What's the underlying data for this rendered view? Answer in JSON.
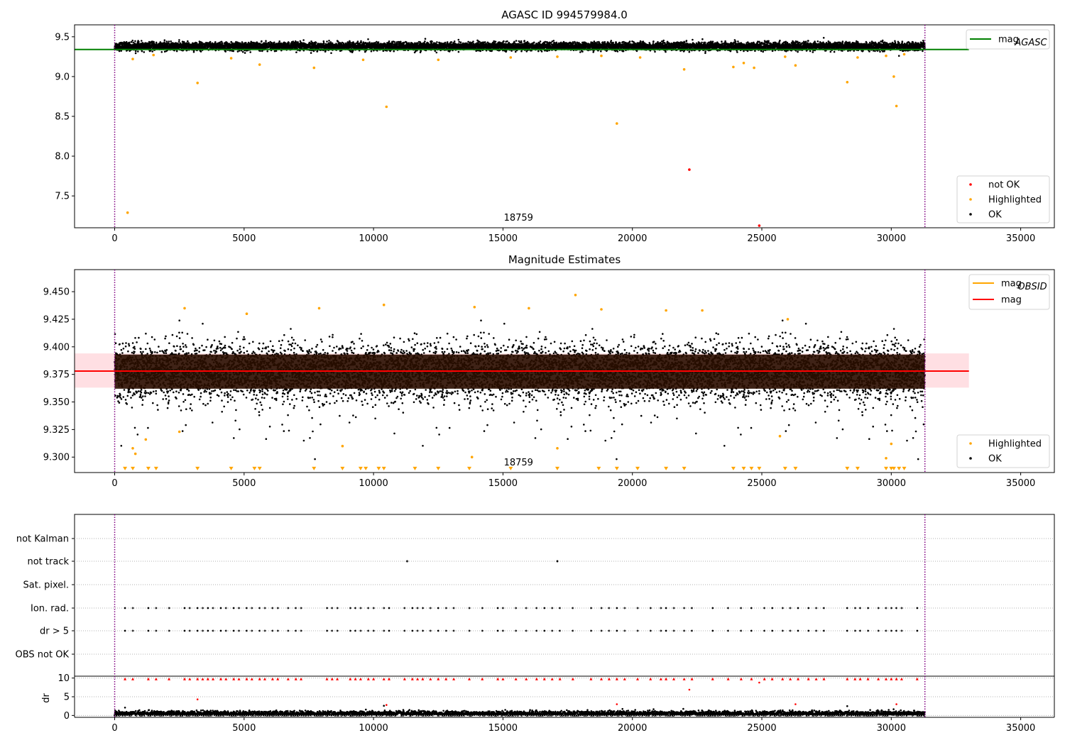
{
  "figure": {
    "panels": [
      {
        "id": "p1",
        "title": "AGASC ID 994579984.0"
      },
      {
        "id": "p2",
        "title": "Magnitude Estimates"
      },
      {
        "id": "p3",
        "title": ""
      }
    ]
  },
  "colors": {
    "ok": "#000000",
    "highlighted": "#ffa500",
    "not_ok": "#ff0000",
    "mag_agasc": "#008000",
    "mag_obsid": "#ffa500",
    "mag": "#ff0000",
    "band": "#ffc0c8",
    "marker_line": "#800080"
  },
  "chart_data": [
    {
      "type": "scatter",
      "panel": "top",
      "title": "AGASC ID 994579984.0",
      "xlabel": "",
      "ylabel": "",
      "xlim": [
        -1550,
        36300
      ],
      "ylim": [
        7.1,
        9.65
      ],
      "xticks": [
        0,
        5000,
        10000,
        15000,
        20000,
        25000,
        30000,
        35000
      ],
      "xtick_labels": [
        "0",
        "5000",
        "10000",
        "15000",
        "20000",
        "25000",
        "30000",
        "35000"
      ],
      "yticks": [
        7.5,
        8.0,
        8.5,
        9.0,
        9.5
      ],
      "ytick_labels": [
        "7.5",
        "8.0",
        "8.5",
        "9.0",
        "9.5"
      ],
      "vlines": [
        0,
        31300
      ],
      "annotation": {
        "text": "18759",
        "x": 15600,
        "y": 7.15
      },
      "hlines": [
        {
          "name": "mag_AGASC",
          "y": 9.34,
          "x_range": [
            -1550,
            33000
          ]
        }
      ],
      "band": null,
      "series": [
        {
          "name": "OK",
          "kind": "ok_cloud",
          "center": 9.38,
          "spread": 0.025,
          "x_range": [
            0,
            31300
          ]
        },
        {
          "name": "Highlighted",
          "kind": "highlighted",
          "points": [
            [
              500,
              7.29
            ],
            [
              3200,
              8.92
            ],
            [
              10500,
              8.62
            ],
            [
              19400,
              8.41
            ],
            [
              28300,
              8.93
            ],
            [
              30100,
              9.0
            ],
            [
              30200,
              8.63
            ],
            [
              700,
              9.22
            ],
            [
              1500,
              9.27
            ],
            [
              4500,
              9.23
            ],
            [
              5600,
              9.15
            ],
            [
              7700,
              9.11
            ],
            [
              9600,
              9.21
            ],
            [
              12500,
              9.21
            ],
            [
              15300,
              9.24
            ],
            [
              17100,
              9.25
            ],
            [
              18800,
              9.26
            ],
            [
              20300,
              9.24
            ],
            [
              22000,
              9.09
            ],
            [
              23900,
              9.12
            ],
            [
              24300,
              9.17
            ],
            [
              24700,
              9.11
            ],
            [
              25900,
              9.25
            ],
            [
              26300,
              9.14
            ],
            [
              28700,
              9.24
            ],
            [
              29800,
              9.26
            ],
            [
              30500,
              9.28
            ]
          ]
        },
        {
          "name": "not OK",
          "kind": "not_ok",
          "points": [
            [
              22200,
              7.83
            ],
            [
              24900,
              7.1
            ]
          ]
        }
      ],
      "legends": [
        {
          "position": "top-right",
          "entries": [
            {
              "label": "mag",
              "sub": "AGASC",
              "kind": "line",
              "color": "#008000"
            }
          ]
        },
        {
          "position": "bottom-right",
          "entries": [
            {
              "label": "not OK",
              "kind": "dot",
              "color": "#ff0000"
            },
            {
              "label": "Highlighted",
              "kind": "dot",
              "color": "#ffa500"
            },
            {
              "label": "OK",
              "kind": "dot",
              "color": "#000000"
            }
          ]
        }
      ]
    },
    {
      "type": "scatter",
      "panel": "middle",
      "title": "Magnitude Estimates",
      "xlabel": "",
      "ylabel": "",
      "xlim": [
        -1550,
        36300
      ],
      "ylim": [
        9.286,
        9.47
      ],
      "xticks": [
        0,
        5000,
        10000,
        15000,
        20000,
        25000,
        30000,
        35000
      ],
      "xtick_labels": [
        "0",
        "5000",
        "10000",
        "15000",
        "20000",
        "25000",
        "30000",
        "35000"
      ],
      "yticks": [
        9.3,
        9.325,
        9.35,
        9.375,
        9.4,
        9.425,
        9.45
      ],
      "ytick_labels": [
        "9.300",
        "9.325",
        "9.350",
        "9.375",
        "9.400",
        "9.425",
        "9.450"
      ],
      "vlines": [
        0,
        31300
      ],
      "annotation": {
        "text": "18759",
        "x": 15600,
        "y": 9.291
      },
      "hlines": [
        {
          "name": "mag_OBSID",
          "y": 9.378,
          "x_range": [
            0,
            31300
          ]
        },
        {
          "name": "mag",
          "y": 9.378,
          "x_range": [
            -1550,
            33000
          ]
        }
      ],
      "band": {
        "y0": 9.363,
        "y1": 9.394,
        "x_range": [
          -1550,
          33000
        ]
      },
      "series": [
        {
          "name": "OK",
          "kind": "ok_cloud",
          "center": 9.378,
          "spread": 0.012,
          "x_range": [
            0,
            31300
          ]
        },
        {
          "name": "Highlighted",
          "kind": "highlighted",
          "points": [
            [
              700,
              9.308
            ],
            [
              800,
              9.303
            ],
            [
              1200,
              9.316
            ],
            [
              2500,
              9.323
            ],
            [
              8800,
              9.31
            ],
            [
              13800,
              9.3
            ],
            [
              17100,
              9.308
            ],
            [
              25700,
              9.319
            ],
            [
              29800,
              9.299
            ],
            [
              30000,
              9.312
            ],
            [
              2700,
              9.435
            ],
            [
              5100,
              9.43
            ],
            [
              7900,
              9.435
            ],
            [
              10400,
              9.438
            ],
            [
              13900,
              9.436
            ],
            [
              16000,
              9.435
            ],
            [
              17800,
              9.447
            ],
            [
              18800,
              9.434
            ],
            [
              21300,
              9.433
            ],
            [
              22700,
              9.433
            ],
            [
              26000,
              9.425
            ]
          ]
        },
        {
          "name": "Highlighted (below range)",
          "kind": "triangles",
          "y": 9.288,
          "x": [
            400,
            700,
            1300,
            1600,
            3200,
            4500,
            5400,
            5600,
            7700,
            8800,
            9500,
            9700,
            10200,
            10400,
            11600,
            12500,
            13700,
            15300,
            17100,
            18700,
            19400,
            20200,
            21300,
            22000,
            23900,
            24300,
            24600,
            24900,
            25900,
            26300,
            28300,
            28700,
            29800,
            30000,
            30100,
            30300,
            30500
          ]
        }
      ],
      "legends": [
        {
          "position": "top-right",
          "entries": [
            {
              "label": "mag",
              "sub": "OBSID",
              "kind": "line",
              "color": "#ffa500"
            },
            {
              "label": "mag",
              "sub": "",
              "kind": "line",
              "color": "#ff0000"
            }
          ]
        },
        {
          "position": "bottom-right",
          "entries": [
            {
              "label": "Highlighted",
              "kind": "dot",
              "color": "#ffa500"
            },
            {
              "label": "OK",
              "kind": "dot",
              "color": "#000000"
            }
          ]
        }
      ]
    },
    {
      "type": "scatter",
      "panel": "flags",
      "title": "",
      "xlim": [
        -1550,
        36300
      ],
      "categories": [
        "not Kalman",
        "not track",
        "Sat. pixel.",
        "Ion. rad.",
        "dr > 5",
        "OBS not OK"
      ],
      "vlines": [
        0,
        31300
      ],
      "series": [
        {
          "name": "not track",
          "points": [
            [
              11300,
              "not track"
            ],
            [
              17100,
              "not track"
            ]
          ]
        },
        {
          "name": "Ion. rad.",
          "x": [
            400,
            700,
            1300,
            1600,
            2100,
            2700,
            2900,
            3200,
            3400,
            3600,
            3800,
            4100,
            4300,
            4600,
            4800,
            5100,
            5300,
            5600,
            5800,
            6100,
            6300,
            6700,
            7000,
            7200,
            8200,
            8400,
            8600,
            9100,
            9300,
            9500,
            9800,
            10000,
            10400,
            10600,
            11200,
            11500,
            11700,
            11900,
            12200,
            12500,
            12800,
            13100,
            13700,
            14200,
            14800,
            15000,
            15500,
            15900,
            16300,
            16600,
            16900,
            17200,
            17700,
            18400,
            18800,
            19100,
            19400,
            19700,
            20200,
            20700,
            21100,
            21300,
            21600,
            22000,
            22300,
            23100,
            23700,
            24200,
            24600,
            25100,
            25400,
            25800,
            26100,
            26400,
            26800,
            27100,
            27400,
            28300,
            28600,
            28800,
            29100,
            29500,
            29800,
            30000,
            30200,
            30400,
            31000
          ]
        },
        {
          "name": "dr > 5",
          "x": [
            400,
            700,
            1300,
            1600,
            2100,
            2700,
            2900,
            3200,
            3400,
            3600,
            3800,
            4100,
            4300,
            4600,
            4800,
            5100,
            5300,
            5600,
            5800,
            6100,
            6300,
            6700,
            7000,
            7200,
            8200,
            8400,
            8600,
            9100,
            9300,
            9500,
            9800,
            10000,
            10400,
            10600,
            11200,
            11500,
            11700,
            11900,
            12200,
            12500,
            12800,
            13100,
            13700,
            14200,
            14800,
            15000,
            15500,
            15900,
            16300,
            16600,
            16900,
            17200,
            17700,
            18400,
            18800,
            19100,
            19400,
            19700,
            20200,
            20700,
            21100,
            21300,
            21600,
            22000,
            22300,
            23100,
            23700,
            24200,
            24600,
            25100,
            25400,
            25800,
            26100,
            26400,
            26800,
            27100,
            27400,
            28300,
            28600,
            28800,
            29100,
            29500,
            29800,
            30000,
            30200,
            30400,
            31000
          ]
        }
      ]
    },
    {
      "type": "scatter",
      "panel": "dr",
      "title": "",
      "xlabel": "",
      "ylabel": "dr",
      "xlim": [
        -1550,
        36300
      ],
      "ylim": [
        -0.5,
        10.5
      ],
      "xticks": [
        0,
        5000,
        10000,
        15000,
        20000,
        25000,
        30000,
        35000
      ],
      "xtick_labels": [
        "0",
        "5000",
        "10000",
        "15000",
        "20000",
        "25000",
        "30000",
        "35000"
      ],
      "yticks": [
        0,
        5,
        10
      ],
      "ytick_labels": [
        "0",
        "5",
        "10"
      ],
      "series": [
        {
          "name": "OK",
          "kind": "ok_band",
          "center": 0.5,
          "spread": 0.35,
          "x_range": [
            0,
            31300
          ]
        },
        {
          "name": "dr > 5 (clipped)",
          "kind": "red_row",
          "y": 9.8,
          "x": [
            400,
            700,
            1300,
            1600,
            2100,
            2700,
            2900,
            3200,
            3400,
            3600,
            3800,
            4100,
            4300,
            4600,
            4800,
            5100,
            5300,
            5600,
            5800,
            6100,
            6300,
            6700,
            7000,
            7200,
            8200,
            8400,
            8600,
            9100,
            9300,
            9500,
            9800,
            10000,
            10400,
            10600,
            11200,
            11500,
            11700,
            11900,
            12200,
            12500,
            12800,
            13100,
            13700,
            14200,
            14800,
            15000,
            15500,
            15900,
            16300,
            16600,
            16900,
            17200,
            17700,
            18400,
            18800,
            19100,
            19400,
            19700,
            20200,
            20700,
            21100,
            21300,
            21600,
            22000,
            22300,
            23100,
            23700,
            24200,
            24600,
            25100,
            25400,
            25800,
            26100,
            26400,
            26800,
            27100,
            27400,
            28300,
            28600,
            28800,
            29100,
            29500,
            29800,
            30000,
            30200,
            30400,
            31000
          ]
        },
        {
          "name": "outliers",
          "kind": "red_points",
          "points": [
            [
              3200,
              4.3
            ],
            [
              10500,
              2.8
            ],
            [
              19400,
              3.0
            ],
            [
              22200,
              6.9
            ],
            [
              24900,
              8.8
            ],
            [
              26300,
              3.0
            ],
            [
              30200,
              3.0
            ]
          ]
        },
        {
          "name": "black outliers",
          "kind": "black_points",
          "points": [
            [
              400,
              2.1
            ],
            [
              10400,
              2.6
            ],
            [
              28300,
              2.5
            ],
            [
              29900,
              1.5
            ]
          ]
        }
      ]
    }
  ]
}
